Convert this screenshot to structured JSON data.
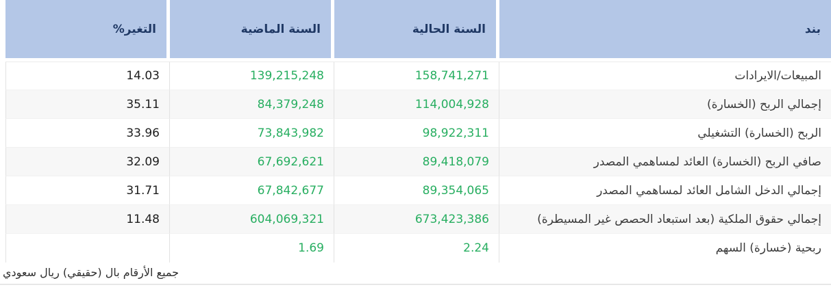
{
  "table": {
    "headers": {
      "item": "بند",
      "current_year": "السنة الحالية",
      "previous_year": "السنة الماضية",
      "change_percent": "التغير%"
    },
    "rows": [
      {
        "item": "المبيعات/الايرادات",
        "current": "158,741,271",
        "previous": "139,215,248",
        "change": "14.03"
      },
      {
        "item": "إجمالي الربح (الخسارة)",
        "current": "114,004,928",
        "previous": "84,379,248",
        "change": "35.11"
      },
      {
        "item": "الربح (الخسارة) التشغيلي",
        "current": "98,922,311",
        "previous": "73,843,982",
        "change": "33.96"
      },
      {
        "item": "صافي الربح (الخسارة) العائد لمساهمي المصدر",
        "current": "89,418,079",
        "previous": "67,692,621",
        "change": "32.09"
      },
      {
        "item": "إجمالي الدخل الشامل العائد لمساهمي المصدر",
        "current": "89,354,065",
        "previous": "67,842,677",
        "change": "31.71"
      },
      {
        "item": "إجمالي حقوق الملكية (بعد استبعاد الحصص غير المسيطرة)",
        "current": "673,423,386",
        "previous": "604,069,321",
        "change": "11.48"
      },
      {
        "item": "ربحية (خسارة) السهم",
        "current": "2.24",
        "previous": "1.69",
        "change": ""
      }
    ],
    "footer_note": "جميع الأرقام بال (حقيقي) ريال سعودي"
  },
  "colors": {
    "header_bg": "#b4c7e7",
    "header_text": "#1f3864",
    "positive_value_green": "#27ae60"
  }
}
